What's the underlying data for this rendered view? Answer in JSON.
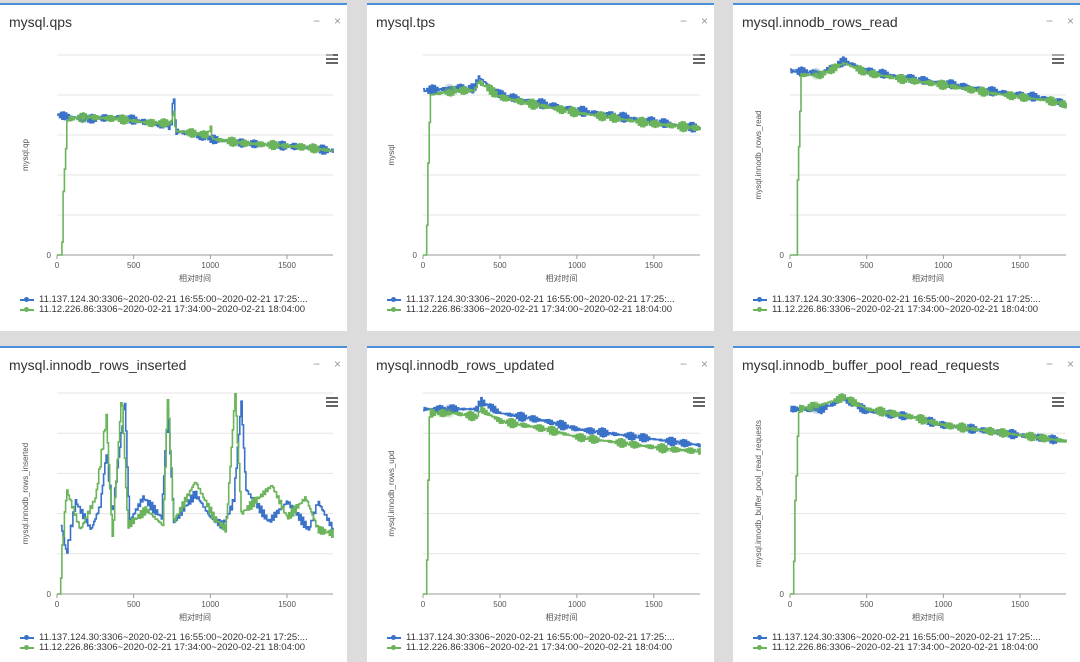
{
  "ui": {
    "minimize_label": "−",
    "close_label": "×",
    "colors": {
      "series1": "#3a72c9",
      "series2": "#6bb45b",
      "grid": "#e6e6e6",
      "axis": "#999999"
    }
  },
  "chart_data": [
    {
      "type": "line",
      "title": "mysql.qps",
      "xlabel": "相对时间",
      "ylabel": "mysql.qp",
      "xlim": [
        0,
        1800
      ],
      "ylim": [
        0,
        5
      ],
      "x_ticks": [
        0,
        500,
        1000,
        1500
      ],
      "y_ticks": [
        "0",
        "",
        "",
        "",
        "",
        ""
      ],
      "series": [
        {
          "name": "11.137.124.30:3306~2020-02-21 16:55:00~2020-02-21 17:25:...",
          "points": [
            [
              0,
              3.5
            ],
            [
              200,
              3.4
            ],
            [
              400,
              3.45
            ],
            [
              600,
              3.3
            ],
            [
              740,
              3.2
            ],
            [
              760,
              4.0
            ],
            [
              770,
              3.1
            ],
            [
              900,
              3.0
            ],
            [
              1000,
              2.9
            ],
            [
              1200,
              2.8
            ],
            [
              1400,
              2.75
            ],
            [
              1600,
              2.7
            ],
            [
              1800,
              2.6
            ]
          ]
        },
        {
          "name": "11.12.226.86:3306~2020-02-21 17:34:00~2020-02-21 18:04:00",
          "points": [
            [
              0,
              0
            ],
            [
              30,
              0
            ],
            [
              40,
              1.6
            ],
            [
              55,
              2.6
            ],
            [
              65,
              3.4
            ],
            [
              200,
              3.45
            ],
            [
              400,
              3.4
            ],
            [
              600,
              3.3
            ],
            [
              740,
              3.3
            ],
            [
              760,
              3.6
            ],
            [
              770,
              3.1
            ],
            [
              980,
              3.0
            ],
            [
              1000,
              3.2
            ],
            [
              1010,
              2.9
            ],
            [
              1200,
              2.8
            ],
            [
              1400,
              2.75
            ],
            [
              1600,
              2.7
            ],
            [
              1800,
              2.6
            ]
          ]
        }
      ]
    },
    {
      "type": "line",
      "title": "mysql.tps",
      "xlabel": "相对时间",
      "ylabel": "mysql",
      "xlim": [
        0,
        1800
      ],
      "ylim": [
        0,
        4.5
      ],
      "x_ticks": [
        0,
        500,
        1000,
        1500
      ],
      "y_ticks": [
        "0",
        "",
        "",
        "",
        "",
        ""
      ],
      "series": [
        {
          "name": "11.137.124.30:3306~2020-02-21 16:55:00~2020-02-21 17:25:...",
          "points": [
            [
              0,
              3.7
            ],
            [
              200,
              3.75
            ],
            [
              330,
              3.75
            ],
            [
              360,
              4.0
            ],
            [
              500,
              3.6
            ],
            [
              700,
              3.45
            ],
            [
              1000,
              3.25
            ],
            [
              1300,
              3.1
            ],
            [
              1500,
              3.0
            ],
            [
              1800,
              2.85
            ]
          ]
        },
        {
          "name": "11.12.226.86:3306~2020-02-21 17:34:00~2020-02-21 18:04:00",
          "points": [
            [
              0,
              0
            ],
            [
              20,
              0
            ],
            [
              30,
              1.8
            ],
            [
              45,
              3.6
            ],
            [
              200,
              3.7
            ],
            [
              330,
              3.7
            ],
            [
              360,
              3.9
            ],
            [
              500,
              3.55
            ],
            [
              700,
              3.4
            ],
            [
              1000,
              3.2
            ],
            [
              1300,
              3.05
            ],
            [
              1500,
              2.95
            ],
            [
              1800,
              2.85
            ]
          ]
        }
      ]
    },
    {
      "type": "line",
      "title": "mysql.innodb_rows_read",
      "xlabel": "相对时间",
      "ylabel": "mysql.innodb_rows_read",
      "xlim": [
        0,
        1800
      ],
      "ylim": [
        0,
        5
      ],
      "x_ticks": [
        0,
        500,
        1000,
        1500
      ],
      "y_ticks": [
        "0",
        "",
        "",
        "",
        "",
        ""
      ],
      "series": [
        {
          "name": "11.137.124.30:3306~2020-02-21 16:55:00~2020-02-21 17:25:...",
          "points": [
            [
              0,
              4.6
            ],
            [
              200,
              4.55
            ],
            [
              350,
              4.85
            ],
            [
              500,
              4.6
            ],
            [
              800,
              4.4
            ],
            [
              1000,
              4.3
            ],
            [
              1300,
              4.1
            ],
            [
              1500,
              4.0
            ],
            [
              1700,
              3.9
            ],
            [
              1800,
              3.75
            ]
          ]
        },
        {
          "name": "11.12.226.86:3306~2020-02-21 17:34:00~2020-02-21 18:04:00",
          "points": [
            [
              0,
              0
            ],
            [
              40,
              0
            ],
            [
              50,
              2.3
            ],
            [
              60,
              3.0
            ],
            [
              70,
              4.5
            ],
            [
              200,
              4.5
            ],
            [
              350,
              4.8
            ],
            [
              500,
              4.55
            ],
            [
              800,
              4.35
            ],
            [
              1000,
              4.25
            ],
            [
              1300,
              4.05
            ],
            [
              1500,
              3.95
            ],
            [
              1700,
              3.85
            ],
            [
              1800,
              3.75
            ]
          ]
        }
      ]
    },
    {
      "type": "line",
      "title": "mysql.innodb_rows_inserted",
      "xlabel": "相对时间",
      "ylabel": "mysql.innodb_rows_inserted",
      "xlim": [
        0,
        1800
      ],
      "ylim": [
        0,
        5
      ],
      "x_ticks": [
        0,
        500,
        1000,
        1500
      ],
      "y_ticks": [
        "0",
        "",
        "",
        "",
        "",
        ""
      ],
      "series": [
        {
          "name": "11.137.124.30:3306~2020-02-21 16:55:00~2020-02-21 17:25:...",
          "points": [
            [
              20,
              1.8
            ],
            [
              60,
              1.0
            ],
            [
              120,
              2.3
            ],
            [
              220,
              1.6
            ],
            [
              280,
              2.2
            ],
            [
              320,
              3.5
            ],
            [
              360,
              2.0
            ],
            [
              440,
              4.8
            ],
            [
              470,
              1.8
            ],
            [
              560,
              2.4
            ],
            [
              680,
              1.9
            ],
            [
              720,
              4.6
            ],
            [
              760,
              1.8
            ],
            [
              900,
              2.5
            ],
            [
              1000,
              1.9
            ],
            [
              1080,
              1.7
            ],
            [
              1150,
              2.3
            ],
            [
              1200,
              4.8
            ],
            [
              1230,
              2.6
            ],
            [
              1380,
              1.8
            ],
            [
              1500,
              2.3
            ],
            [
              1640,
              1.6
            ],
            [
              1700,
              2.3
            ],
            [
              1800,
              1.6
            ]
          ]
        },
        {
          "name": "11.12.226.86:3306~2020-02-21 17:34:00~2020-02-21 18:04:00",
          "points": [
            [
              0,
              0
            ],
            [
              20,
              0
            ],
            [
              30,
              1.0
            ],
            [
              60,
              2.6
            ],
            [
              150,
              1.6
            ],
            [
              250,
              2.4
            ],
            [
              320,
              4.4
            ],
            [
              360,
              1.4
            ],
            [
              420,
              5.0
            ],
            [
              460,
              1.7
            ],
            [
              580,
              2.1
            ],
            [
              690,
              1.7
            ],
            [
              720,
              4.9
            ],
            [
              760,
              1.8
            ],
            [
              900,
              2.8
            ],
            [
              1020,
              1.9
            ],
            [
              1100,
              1.6
            ],
            [
              1160,
              5.0
            ],
            [
              1200,
              2.0
            ],
            [
              1400,
              2.7
            ],
            [
              1500,
              1.9
            ],
            [
              1620,
              2.4
            ],
            [
              1700,
              1.6
            ],
            [
              1800,
              1.5
            ]
          ]
        }
      ]
    },
    {
      "type": "line",
      "title": "mysql.innodb_rows_updated",
      "xlabel": "相对时间",
      "ylabel": "mysql.innodb_rows_upd",
      "xlim": [
        0,
        1800
      ],
      "ylim": [
        0,
        5
      ],
      "x_ticks": [
        0,
        500,
        1000,
        1500
      ],
      "y_ticks": [
        "",
        "",
        "",
        "",
        "",
        ""
      ],
      "series": [
        {
          "name": "11.137.124.30:3306~2020-02-21 16:55:00~2020-02-21 17:25:...",
          "points": [
            [
              0,
              4.6
            ],
            [
              200,
              4.6
            ],
            [
              350,
              4.6
            ],
            [
              370,
              4.8
            ],
            [
              500,
              4.5
            ],
            [
              800,
              4.3
            ],
            [
              1000,
              4.1
            ],
            [
              1300,
              3.95
            ],
            [
              1600,
              3.8
            ],
            [
              1800,
              3.7
            ]
          ]
        },
        {
          "name": "11.12.226.86:3306~2020-02-21 17:34:00~2020-02-21 18:04:00",
          "points": [
            [
              0,
              0
            ],
            [
              20,
              0
            ],
            [
              30,
              2.3
            ],
            [
              40,
              4.5
            ],
            [
              200,
              4.5
            ],
            [
              350,
              4.4
            ],
            [
              370,
              4.6
            ],
            [
              500,
              4.3
            ],
            [
              800,
              4.1
            ],
            [
              1000,
              3.9
            ],
            [
              1300,
              3.75
            ],
            [
              1600,
              3.6
            ],
            [
              1800,
              3.55
            ]
          ]
        }
      ]
    },
    {
      "type": "line",
      "title": "mysql.innodb_buffer_pool_read_requests",
      "xlabel": "相对时间",
      "ylabel": "mysql.innodb_buffer_pool_read_requests",
      "xlim": [
        0,
        1800
      ],
      "ylim": [
        0,
        5
      ],
      "x_ticks": [
        0,
        500,
        1000,
        1500
      ],
      "y_ticks": [
        "0",
        "",
        "",
        "",
        "",
        ""
      ],
      "series": [
        {
          "name": "11.137.124.30:3306~2020-02-21 16:55:00~2020-02-21 17:25:...",
          "points": [
            [
              0,
              4.6
            ],
            [
              200,
              4.6
            ],
            [
              350,
              4.85
            ],
            [
              500,
              4.55
            ],
            [
              800,
              4.4
            ],
            [
              1000,
              4.2
            ],
            [
              1300,
              4.05
            ],
            [
              1500,
              3.95
            ],
            [
              1800,
              3.8
            ]
          ]
        },
        {
          "name": "11.12.226.86:3306~2020-02-21 17:34:00~2020-02-21 18:04:00",
          "points": [
            [
              0,
              0
            ],
            [
              20,
              0
            ],
            [
              30,
              2.1
            ],
            [
              40,
              3.0
            ],
            [
              55,
              4.6
            ],
            [
              200,
              4.7
            ],
            [
              350,
              4.9
            ],
            [
              500,
              4.6
            ],
            [
              800,
              4.4
            ],
            [
              1000,
              4.2
            ],
            [
              1300,
              4.05
            ],
            [
              1500,
              3.95
            ],
            [
              1800,
              3.8
            ]
          ]
        }
      ]
    }
  ]
}
